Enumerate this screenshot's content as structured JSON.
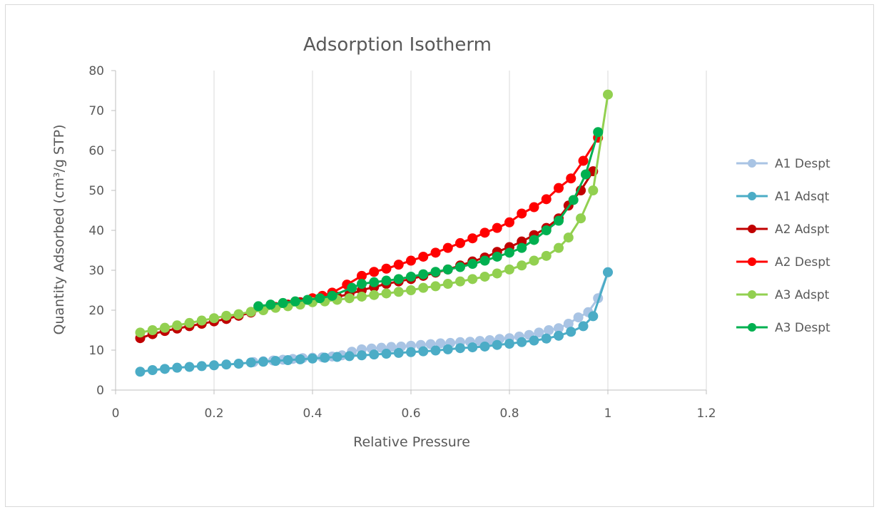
{
  "chart_data": {
    "type": "scatter",
    "title": "Adsorption Isotherm",
    "xlabel": "Relative Pressure",
    "ylabel": "Quantity Adsorbed (cm³/g STP)",
    "xlim": [
      0,
      1.2
    ],
    "ylim": [
      0,
      80
    ],
    "x_ticks": [
      0,
      0.2,
      0.4,
      0.6,
      0.8,
      1,
      1.2
    ],
    "y_ticks": [
      0,
      10,
      20,
      30,
      40,
      50,
      60,
      70,
      80
    ],
    "x_tick_labels": [
      "0",
      "0.2",
      "0.4",
      "0.6",
      "0.8",
      "1",
      "1.2"
    ],
    "y_tick_labels": [
      "0",
      "10",
      "20",
      "30",
      "40",
      "50",
      "60",
      "70",
      "80"
    ],
    "grid": "vertical",
    "legend_position": "right",
    "series": [
      {
        "name": "A1 Despt",
        "color": "#a9c4e4",
        "x": [
          0.28,
          0.3,
          0.32,
          0.34,
          0.36,
          0.38,
          0.4,
          0.42,
          0.44,
          0.46,
          0.48,
          0.5,
          0.52,
          0.54,
          0.56,
          0.58,
          0.6,
          0.62,
          0.64,
          0.66,
          0.68,
          0.7,
          0.72,
          0.74,
          0.76,
          0.78,
          0.8,
          0.82,
          0.84,
          0.86,
          0.88,
          0.9,
          0.92,
          0.94,
          0.96,
          0.98,
          1.0
        ],
        "y": [
          7.0,
          7.2,
          7.4,
          7.6,
          7.8,
          8.0,
          8.1,
          8.2,
          8.4,
          8.7,
          9.6,
          10.2,
          10.4,
          10.6,
          10.8,
          10.9,
          11.1,
          11.3,
          11.5,
          11.7,
          11.8,
          12.0,
          12.1,
          12.3,
          12.5,
          12.8,
          13.0,
          13.4,
          13.8,
          14.4,
          15.0,
          15.5,
          16.6,
          18.2,
          19.5,
          23.0,
          29.5
        ]
      },
      {
        "name": "A1 Adsqt",
        "color": "#4bacc6",
        "x": [
          0.05,
          0.075,
          0.1,
          0.125,
          0.15,
          0.175,
          0.2,
          0.225,
          0.25,
          0.275,
          0.3,
          0.325,
          0.35,
          0.375,
          0.4,
          0.425,
          0.45,
          0.475,
          0.5,
          0.525,
          0.55,
          0.575,
          0.6,
          0.625,
          0.65,
          0.675,
          0.7,
          0.725,
          0.75,
          0.775,
          0.8,
          0.825,
          0.85,
          0.875,
          0.9,
          0.925,
          0.95,
          0.97,
          1.0
        ],
        "y": [
          4.6,
          5.0,
          5.3,
          5.6,
          5.8,
          6.0,
          6.2,
          6.4,
          6.6,
          6.9,
          7.1,
          7.3,
          7.5,
          7.7,
          7.9,
          8.1,
          8.3,
          8.5,
          8.7,
          8.9,
          9.1,
          9.3,
          9.5,
          9.7,
          9.9,
          10.2,
          10.5,
          10.7,
          10.9,
          11.3,
          11.6,
          12.0,
          12.4,
          12.9,
          13.6,
          14.6,
          16.0,
          18.5,
          29.5
        ]
      },
      {
        "name": "A2 Adspt",
        "color": "#c00000",
        "x": [
          0.05,
          0.075,
          0.1,
          0.125,
          0.15,
          0.175,
          0.2,
          0.225,
          0.25,
          0.275,
          0.3,
          0.325,
          0.35,
          0.375,
          0.4,
          0.425,
          0.45,
          0.475,
          0.5,
          0.525,
          0.55,
          0.575,
          0.6,
          0.625,
          0.65,
          0.675,
          0.7,
          0.725,
          0.75,
          0.775,
          0.8,
          0.825,
          0.85,
          0.875,
          0.9,
          0.92,
          0.945,
          0.97
        ],
        "y": [
          13.0,
          14.0,
          14.8,
          15.4,
          16.0,
          16.6,
          17.2,
          17.8,
          18.6,
          19.4,
          20.2,
          20.8,
          21.4,
          22.0,
          22.6,
          23.0,
          23.4,
          24.0,
          25.0,
          25.8,
          26.6,
          27.2,
          27.8,
          28.6,
          29.4,
          30.2,
          31.2,
          32.2,
          33.2,
          34.6,
          35.8,
          37.2,
          38.8,
          40.6,
          43.0,
          46.2,
          50.0,
          54.8
        ]
      },
      {
        "name": "A2 Despt",
        "color": "#ff0000",
        "x": [
          0.4,
          0.42,
          0.44,
          0.47,
          0.5,
          0.525,
          0.55,
          0.575,
          0.6,
          0.625,
          0.65,
          0.675,
          0.7,
          0.725,
          0.75,
          0.775,
          0.8,
          0.825,
          0.85,
          0.875,
          0.9,
          0.925,
          0.95,
          0.98
        ],
        "y": [
          23.0,
          23.6,
          24.4,
          26.4,
          28.6,
          29.6,
          30.4,
          31.4,
          32.4,
          33.4,
          34.4,
          35.6,
          36.8,
          38.0,
          39.4,
          40.6,
          42.0,
          44.2,
          45.8,
          47.8,
          50.6,
          53.0,
          57.4,
          63.2
        ]
      },
      {
        "name": "A3 Adspt",
        "color": "#92d050",
        "x": [
          0.05,
          0.075,
          0.1,
          0.125,
          0.15,
          0.175,
          0.2,
          0.225,
          0.25,
          0.275,
          0.3,
          0.325,
          0.35,
          0.375,
          0.4,
          0.425,
          0.45,
          0.475,
          0.5,
          0.525,
          0.55,
          0.575,
          0.6,
          0.625,
          0.65,
          0.675,
          0.7,
          0.725,
          0.75,
          0.775,
          0.8,
          0.825,
          0.85,
          0.875,
          0.9,
          0.92,
          0.945,
          0.97,
          1.0
        ],
        "y": [
          14.4,
          15.0,
          15.6,
          16.2,
          16.8,
          17.4,
          18.0,
          18.6,
          19.0,
          19.6,
          20.0,
          20.6,
          21.0,
          21.4,
          22.0,
          22.2,
          22.6,
          23.0,
          23.4,
          23.8,
          24.2,
          24.6,
          25.0,
          25.6,
          26.0,
          26.6,
          27.2,
          27.8,
          28.4,
          29.2,
          30.2,
          31.2,
          32.4,
          33.6,
          35.6,
          38.2,
          43.0,
          50.0,
          74.0
        ]
      },
      {
        "name": "A3 Despt",
        "color": "#00b050",
        "x": [
          0.29,
          0.315,
          0.34,
          0.365,
          0.39,
          0.415,
          0.44,
          0.48,
          0.5,
          0.525,
          0.55,
          0.575,
          0.6,
          0.625,
          0.65,
          0.675,
          0.7,
          0.725,
          0.75,
          0.775,
          0.8,
          0.825,
          0.85,
          0.875,
          0.9,
          0.93,
          0.955,
          0.98
        ],
        "y": [
          21.0,
          21.4,
          21.8,
          22.2,
          22.6,
          23.0,
          23.6,
          25.6,
          26.6,
          27.0,
          27.4,
          27.8,
          28.4,
          29.0,
          29.6,
          30.2,
          30.8,
          31.6,
          32.4,
          33.4,
          34.4,
          35.6,
          37.6,
          40.0,
          42.4,
          47.6,
          54.0,
          64.6
        ]
      }
    ]
  }
}
